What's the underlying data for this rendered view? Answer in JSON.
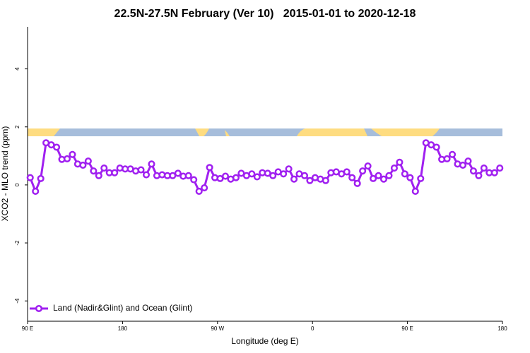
{
  "chart_data": {
    "type": "line",
    "title": "22.5N-27.5N February (Ver 10)   2015-01-01 to 2020-12-18",
    "xlabel": "Longitude (deg E)",
    "ylabel": "XCO2 - MLO trend (ppm)",
    "x": [
      92.5,
      97.5,
      102.5,
      107.5,
      112.5,
      117.5,
      122.5,
      127.5,
      132.5,
      137.5,
      142.5,
      147.5,
      152.5,
      157.5,
      162.5,
      167.5,
      172.5,
      177.5,
      182.5,
      187.5,
      192.5,
      197.5,
      202.5,
      207.5,
      212.5,
      217.5,
      222.5,
      227.5,
      232.5,
      237.5,
      242.5,
      247.5,
      252.5,
      257.5,
      262.5,
      267.5,
      272.5,
      277.5,
      282.5,
      287.5,
      292.5,
      297.5,
      302.5,
      307.5,
      312.5,
      317.5,
      322.5,
      327.5,
      332.5,
      337.5,
      342.5,
      347.5,
      352.5,
      357.5,
      362.5,
      367.5,
      372.5,
      377.5,
      382.5,
      387.5,
      392.5,
      397.5,
      402.5,
      407.5,
      412.5,
      417.5,
      422.5,
      427.5,
      432.5,
      437.5,
      442.5,
      447.5,
      452.5,
      457.5,
      462.5,
      467.5,
      472.5,
      477.5,
      482.5,
      487.5,
      492.5,
      497.5,
      502.5,
      507.5,
      512.5,
      517.5,
      522.5,
      527.5,
      532.5,
      537.5
    ],
    "series": [
      {
        "name": "Land (Nadir&Glint) and Ocean (Glint)",
        "color": "#a020f0",
        "values": [
          0.25,
          -0.22,
          0.22,
          1.45,
          1.38,
          1.3,
          0.88,
          0.9,
          1.05,
          0.72,
          0.68,
          0.82,
          0.48,
          0.32,
          0.58,
          0.42,
          0.42,
          0.58,
          0.55,
          0.55,
          0.48,
          0.52,
          0.35,
          0.72,
          0.32,
          0.35,
          0.32,
          0.32,
          0.4,
          0.3,
          0.32,
          0.18,
          -0.22,
          -0.1,
          0.6,
          0.25,
          0.22,
          0.3,
          0.2,
          0.25,
          0.4,
          0.32,
          0.38,
          0.28,
          0.42,
          0.4,
          0.32,
          0.45,
          0.38,
          0.55,
          0.2,
          0.38,
          0.32,
          0.15,
          0.25,
          0.2,
          0.15,
          0.42,
          0.45,
          0.38,
          0.45,
          0.25,
          0.05,
          0.48,
          0.65,
          0.22,
          0.32,
          0.2,
          0.32,
          0.58,
          0.78,
          0.38,
          0.25,
          -0.22,
          0.22,
          1.45,
          1.38,
          1.3,
          0.88,
          0.9,
          1.05,
          0.72,
          0.68,
          0.82,
          0.48,
          0.32,
          0.58,
          0.42,
          0.42,
          0.58
        ]
      }
    ],
    "xlim": [
      90,
      540
    ],
    "xticks": [
      {
        "value": 90,
        "label": "90 E"
      },
      180,
      {
        "value": 270,
        "label": "90 W"
      },
      {
        "value": 360,
        "label": "0"
      },
      {
        "value": 450,
        "label": "90 E"
      },
      {
        "value": 540,
        "label": "180"
      }
    ],
    "ylim": [
      -4.7,
      5.45
    ],
    "yticks": [
      -4,
      -2,
      0,
      2,
      4
    ],
    "legend": "bottom-left"
  }
}
